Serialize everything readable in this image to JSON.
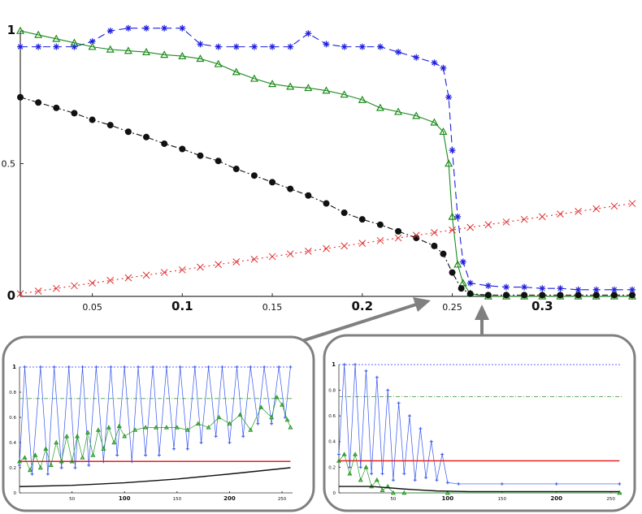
{
  "chart_data": [
    {
      "type": "line",
      "title": "",
      "xlabel": "",
      "ylabel": "",
      "xlim": [
        0.01,
        0.35
      ],
      "ylim": [
        0,
        1
      ],
      "x_ticks": [
        {
          "v": 0.05,
          "label": "0.05",
          "bold": false
        },
        {
          "v": 0.1,
          "label": "0.1",
          "bold": true
        },
        {
          "v": 0.15,
          "label": "0.15",
          "bold": false
        },
        {
          "v": 0.2,
          "label": "0.2",
          "bold": true
        },
        {
          "v": 0.25,
          "label": "0.25",
          "bold": false
        },
        {
          "v": 0.3,
          "label": "0.3",
          "bold": true
        }
      ],
      "y_ticks": [
        {
          "v": 0,
          "label": "0",
          "bold": true
        },
        {
          "v": 0.5,
          "label": "0.5",
          "bold": false
        },
        {
          "v": 1,
          "label": "1",
          "bold": true
        }
      ],
      "grid": false,
      "series": [
        {
          "color": "#1f1fe0",
          "marker": "star",
          "dash": "9,5",
          "x": [
            0.01,
            0.02,
            0.03,
            0.04,
            0.05,
            0.06,
            0.07,
            0.08,
            0.09,
            0.1,
            0.11,
            0.12,
            0.13,
            0.14,
            0.15,
            0.16,
            0.17,
            0.18,
            0.19,
            0.2,
            0.21,
            0.22,
            0.23,
            0.24,
            0.245,
            0.248,
            0.25,
            0.253,
            0.256,
            0.26,
            0.27,
            0.28,
            0.29,
            0.3,
            0.31,
            0.32,
            0.33,
            0.34,
            0.35
          ],
          "y": [
            0.94,
            0.94,
            0.94,
            0.94,
            0.96,
            1.0,
            1.01,
            1.01,
            1.01,
            1.01,
            0.95,
            0.94,
            0.94,
            0.94,
            0.94,
            0.94,
            0.99,
            0.95,
            0.94,
            0.94,
            0.94,
            0.92,
            0.9,
            0.88,
            0.86,
            0.75,
            0.55,
            0.3,
            0.13,
            0.05,
            0.04,
            0.035,
            0.035,
            0.03,
            0.03,
            0.025,
            0.025,
            0.025,
            0.025
          ]
        },
        {
          "color": "#1a8c1a",
          "marker": "triangle",
          "dash": "",
          "x": [
            0.01,
            0.02,
            0.03,
            0.04,
            0.05,
            0.06,
            0.07,
            0.08,
            0.09,
            0.1,
            0.11,
            0.12,
            0.13,
            0.14,
            0.15,
            0.16,
            0.17,
            0.18,
            0.19,
            0.2,
            0.21,
            0.22,
            0.23,
            0.24,
            0.245,
            0.248,
            0.25,
            0.253,
            0.256,
            0.26,
            0.27,
            0.28,
            0.29,
            0.3,
            0.31,
            0.32,
            0.33,
            0.34,
            0.35
          ],
          "y": [
            1.0,
            0.985,
            0.97,
            0.955,
            0.94,
            0.93,
            0.925,
            0.92,
            0.91,
            0.905,
            0.895,
            0.875,
            0.845,
            0.82,
            0.8,
            0.79,
            0.785,
            0.775,
            0.76,
            0.74,
            0.71,
            0.695,
            0.68,
            0.655,
            0.62,
            0.5,
            0.3,
            0.12,
            0.05,
            0.01,
            0,
            0,
            0,
            0,
            0,
            0,
            0,
            0,
            0
          ]
        },
        {
          "color": "#111111",
          "marker": "dot",
          "dash": "7,3,2,3",
          "x": [
            0.01,
            0.02,
            0.03,
            0.04,
            0.05,
            0.06,
            0.07,
            0.08,
            0.09,
            0.1,
            0.11,
            0.12,
            0.13,
            0.14,
            0.15,
            0.16,
            0.17,
            0.18,
            0.19,
            0.2,
            0.21,
            0.22,
            0.23,
            0.24,
            0.245,
            0.25,
            0.255,
            0.26,
            0.27,
            0.28,
            0.29,
            0.3,
            0.31,
            0.32,
            0.33,
            0.34,
            0.35
          ],
          "y": [
            0.75,
            0.73,
            0.71,
            0.69,
            0.665,
            0.645,
            0.62,
            0.6,
            0.575,
            0.555,
            0.53,
            0.51,
            0.48,
            0.455,
            0.43,
            0.405,
            0.38,
            0.35,
            0.315,
            0.29,
            0.27,
            0.245,
            0.22,
            0.19,
            0.16,
            0.09,
            0.03,
            0.01,
            0.005,
            0.005,
            0.005,
            0.005,
            0.005,
            0.005,
            0.005,
            0.005,
            0.005
          ]
        },
        {
          "color": "#e03030",
          "marker": "x",
          "dash": "2,4",
          "x": [
            0.01,
            0.02,
            0.03,
            0.04,
            0.05,
            0.06,
            0.07,
            0.08,
            0.09,
            0.1,
            0.11,
            0.12,
            0.13,
            0.14,
            0.15,
            0.16,
            0.17,
            0.18,
            0.19,
            0.2,
            0.21,
            0.22,
            0.23,
            0.24,
            0.25,
            0.26,
            0.27,
            0.28,
            0.29,
            0.3,
            0.31,
            0.32,
            0.33,
            0.34,
            0.35
          ],
          "y": [
            0.01,
            0.02,
            0.03,
            0.04,
            0.05,
            0.06,
            0.07,
            0.08,
            0.09,
            0.1,
            0.11,
            0.12,
            0.13,
            0.14,
            0.15,
            0.16,
            0.17,
            0.18,
            0.19,
            0.2,
            0.21,
            0.22,
            0.23,
            0.24,
            0.25,
            0.26,
            0.27,
            0.28,
            0.29,
            0.3,
            0.31,
            0.32,
            0.33,
            0.34,
            0.35
          ]
        }
      ]
    },
    {
      "type": "line",
      "title": "",
      "xlim": [
        0,
        260
      ],
      "ylim": [
        0,
        1
      ],
      "x_ticks": [
        {
          "v": 50,
          "label": "50",
          "bold": false
        },
        {
          "v": 100,
          "label": "100",
          "bold": true
        },
        {
          "v": 150,
          "label": "150",
          "bold": false
        },
        {
          "v": 200,
          "label": "200",
          "bold": true
        },
        {
          "v": 250,
          "label": "250",
          "bold": false
        }
      ],
      "y_ticks": [
        {
          "v": 0,
          "label": "0",
          "bold": false
        },
        {
          "v": 0.2,
          "label": "0.2",
          "bold": false
        },
        {
          "v": 0.4,
          "label": "0.4",
          "bold": false
        },
        {
          "v": 0.6,
          "label": "0.6",
          "bold": false
        },
        {
          "v": 0.8,
          "label": "0.8",
          "bold": false
        },
        {
          "v": 1,
          "label": "1",
          "bold": true
        }
      ],
      "reference_lines": [
        {
          "y": 1.0,
          "color": "#6666ff",
          "dash": "2,2"
        },
        {
          "y": 0.75,
          "color": "#66aa66",
          "dash": "5,2,1,2"
        }
      ],
      "series": [
        {
          "color": "#3355ee",
          "marker": "plus",
          "x": [
            0,
            5,
            12,
            20,
            27,
            33,
            40,
            47,
            53,
            60,
            66,
            73,
            80,
            87,
            93,
            100,
            107,
            113,
            120,
            127,
            133,
            140,
            147,
            153,
            160,
            167,
            173,
            180,
            187,
            193,
            200,
            207,
            213,
            220,
            227,
            233,
            240,
            247,
            253,
            258
          ],
          "y": [
            0.22,
            1.0,
            0.15,
            1.0,
            0.15,
            1.0,
            0.2,
            1.0,
            0.2,
            1.0,
            0.22,
            1.0,
            0.25,
            1.0,
            0.3,
            1.0,
            0.25,
            1.0,
            0.3,
            1.0,
            0.3,
            1.0,
            0.35,
            1.0,
            0.35,
            1.0,
            0.4,
            1.0,
            0.45,
            1.0,
            0.4,
            1.0,
            0.45,
            1.0,
            0.55,
            1.0,
            0.55,
            1.0,
            0.6,
            1.0
          ]
        },
        {
          "color": "#2a9a2a",
          "marker": "triangle",
          "x": [
            0,
            5,
            10,
            15,
            20,
            25,
            30,
            35,
            40,
            45,
            50,
            55,
            60,
            65,
            70,
            75,
            80,
            85,
            90,
            95,
            100,
            110,
            120,
            130,
            140,
            150,
            160,
            170,
            180,
            190,
            200,
            210,
            220,
            230,
            240,
            245,
            250,
            255,
            258
          ],
          "y": [
            0.25,
            0.28,
            0.18,
            0.3,
            0.2,
            0.35,
            0.22,
            0.4,
            0.25,
            0.45,
            0.25,
            0.45,
            0.28,
            0.48,
            0.3,
            0.5,
            0.35,
            0.52,
            0.4,
            0.53,
            0.45,
            0.5,
            0.52,
            0.52,
            0.52,
            0.52,
            0.5,
            0.55,
            0.52,
            0.6,
            0.55,
            0.62,
            0.5,
            0.68,
            0.6,
            0.76,
            0.7,
            0.58,
            0.52
          ]
        },
        {
          "color": "#e02020",
          "marker": "none",
          "x": [
            0,
            258
          ],
          "y": [
            0.25,
            0.25
          ]
        },
        {
          "color": "#111111",
          "marker": "none",
          "x": [
            0,
            50,
            100,
            150,
            200,
            258
          ],
          "y": [
            0.05,
            0.06,
            0.08,
            0.11,
            0.15,
            0.2
          ]
        }
      ]
    },
    {
      "type": "line",
      "title": "",
      "xlim": [
        0,
        260
      ],
      "ylim": [
        0,
        1
      ],
      "x_ticks": [
        {
          "v": 50,
          "label": "50",
          "bold": false
        },
        {
          "v": 100,
          "label": "100",
          "bold": true
        },
        {
          "v": 150,
          "label": "150",
          "bold": false
        },
        {
          "v": 200,
          "label": "200",
          "bold": true
        },
        {
          "v": 250,
          "label": "250",
          "bold": false
        }
      ],
      "y_ticks": [
        {
          "v": 0,
          "label": "0",
          "bold": false
        },
        {
          "v": 0.2,
          "label": "0.2",
          "bold": false
        },
        {
          "v": 0.4,
          "label": "0.4",
          "bold": false
        },
        {
          "v": 0.6,
          "label": "0.6",
          "bold": false
        },
        {
          "v": 0.8,
          "label": "0.8",
          "bold": false
        },
        {
          "v": 1,
          "label": "1",
          "bold": true
        }
      ],
      "reference_lines": [
        {
          "y": 1.0,
          "color": "#6666ff",
          "dash": "2,2"
        },
        {
          "y": 0.75,
          "color": "#66aa66",
          "dash": "5,2,1,2"
        }
      ],
      "series": [
        {
          "color": "#3355ee",
          "marker": "plus",
          "x": [
            0,
            5,
            10,
            15,
            20,
            25,
            30,
            35,
            40,
            45,
            50,
            55,
            60,
            65,
            70,
            75,
            80,
            85,
            90,
            95,
            100,
            110,
            150,
            200,
            258
          ],
          "y": [
            0.3,
            1.0,
            0.2,
            1.0,
            0.2,
            0.95,
            0.15,
            0.9,
            0.15,
            0.8,
            0.1,
            0.7,
            0.15,
            0.6,
            0.1,
            0.5,
            0.12,
            0.4,
            0.1,
            0.3,
            0.08,
            0.07,
            0.07,
            0.07,
            0.07
          ]
        },
        {
          "color": "#2a9a2a",
          "marker": "triangle",
          "x": [
            0,
            5,
            10,
            15,
            20,
            25,
            30,
            35,
            40,
            45,
            50,
            60,
            100,
            258
          ],
          "y": [
            0.25,
            0.3,
            0.15,
            0.3,
            0.1,
            0.2,
            0.05,
            0.1,
            0.02,
            0.05,
            0.0,
            0.0,
            0.0,
            0.0
          ]
        },
        {
          "color": "#e02020",
          "marker": "none",
          "x": [
            0,
            258
          ],
          "y": [
            0.25,
            0.25
          ]
        },
        {
          "color": "#111111",
          "marker": "none",
          "x": [
            0,
            30,
            60,
            90,
            120,
            258
          ],
          "y": [
            0.05,
            0.05,
            0.03,
            0.015,
            0.01,
            0.01
          ]
        }
      ]
    }
  ]
}
